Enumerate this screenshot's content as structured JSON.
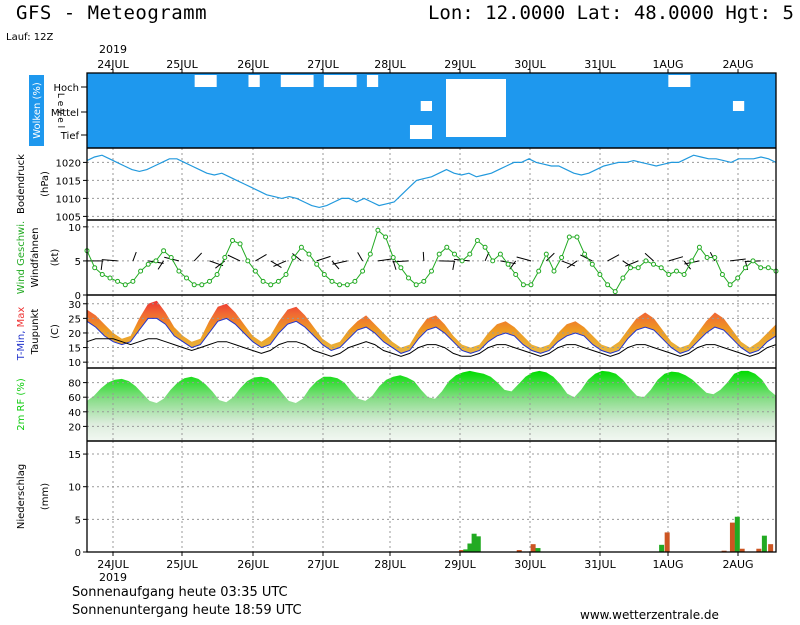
{
  "header": {
    "title": "GFS - Meteogramm",
    "location": "Lon: 12.0000 Lat: 48.0000 Hgt: 5",
    "run": "Lauf: 12Z"
  },
  "footer": {
    "sunrise": "Sonnenaufgang heute 03:35 UTC",
    "sunset": "Sonnenuntergang heute 18:59 UTC",
    "site": "www.wetterzentrale.de"
  },
  "colors": {
    "cloud_blue": "#1e98ee",
    "pressure_line": "#2299dd",
    "wind_green": "#22aa22",
    "rh_green": "#11cc11",
    "temp_orange": "#ee9922",
    "temp_red": "#ee3333",
    "dewpoint_blue": "#2233cc",
    "precip_green": "#22aa22",
    "precip_brown": "#cc5522"
  },
  "chart_data": {
    "type": "meteogram",
    "x_labels": [
      "24JUL",
      "25JUL",
      "26JUL",
      "27JUL",
      "28JUL",
      "29JUL",
      "30JUL",
      "31JUL",
      "1AUG",
      "2AUG"
    ],
    "year_top": "2019",
    "year_bottom": "2019",
    "panels": [
      {
        "id": "clouds",
        "ylabel_parts": [
          "Wolken",
          "(%)"
        ],
        "level_label": "L e v e l",
        "levels": [
          "Hoch",
          "Mittel",
          "Tief"
        ],
        "rows": {
          "hoch": [
            1,
            1,
            1,
            1,
            1,
            1,
            1,
            1,
            1,
            1,
            0,
            0,
            1,
            1,
            1,
            0,
            1,
            1,
            0,
            0,
            0,
            1,
            0,
            0,
            0,
            1,
            0,
            1,
            1,
            1,
            1,
            1,
            1,
            1,
            1,
            1,
            1,
            1,
            1,
            1,
            1,
            1,
            1,
            1,
            1,
            1,
            1,
            1,
            1,
            1,
            1,
            1,
            1,
            1,
            0,
            0,
            1,
            1,
            1,
            1,
            1,
            1,
            1,
            1
          ],
          "mittel": [
            1,
            1,
            1,
            1,
            1,
            1,
            1,
            1,
            1,
            1,
            1,
            1,
            1,
            1,
            1,
            1,
            1,
            1,
            1,
            1,
            1,
            1,
            1,
            1,
            1,
            1,
            1,
            1,
            1,
            1,
            1,
            0,
            1,
            1,
            1,
            1,
            1,
            1,
            1,
            1,
            1,
            1,
            1,
            1,
            1,
            1,
            1,
            1,
            1,
            1,
            1,
            1,
            1,
            1,
            1,
            1,
            1,
            1,
            1,
            1,
            0,
            1,
            1,
            1
          ],
          "tief": [
            1,
            1,
            1,
            1,
            1,
            1,
            1,
            1,
            1,
            1,
            1,
            1,
            1,
            1,
            1,
            1,
            1,
            1,
            1,
            1,
            1,
            1,
            1,
            1,
            1,
            1,
            1,
            1,
            1,
            1,
            0,
            0,
            1,
            1,
            1,
            1,
            1,
            1,
            1,
            1,
            1,
            1,
            1,
            1,
            1,
            1,
            1,
            1,
            1,
            1,
            1,
            1,
            1,
            1,
            1,
            1,
            1,
            1,
            1,
            1,
            1,
            1,
            1,
            1
          ]
        }
      },
      {
        "id": "pressure",
        "ylabel_parts": [
          "Bodendruck",
          "(hPa)"
        ],
        "ylim": [
          1004,
          1024
        ],
        "yticks": [
          1005,
          1010,
          1015,
          1020
        ],
        "values": [
          1020.5,
          1021.5,
          1022,
          1021,
          1020,
          1019,
          1018,
          1017.5,
          1018,
          1019,
          1020,
          1021,
          1021,
          1020,
          1019,
          1018,
          1017,
          1016.5,
          1017,
          1016,
          1015,
          1014,
          1013,
          1012,
          1011,
          1010.5,
          1010,
          1010.5,
          1010,
          1009,
          1008,
          1007.5,
          1008,
          1009,
          1010,
          1010,
          1009,
          1010,
          1009,
          1008,
          1008.5,
          1009,
          1011,
          1013,
          1015,
          1015.5,
          1016,
          1017,
          1018,
          1017,
          1016.5,
          1017,
          1016,
          1016.5,
          1017,
          1018,
          1019,
          1020,
          1020,
          1021,
          1020,
          1019.5,
          1019,
          1019,
          1018,
          1017,
          1016.5,
          1017,
          1018,
          1019,
          1019.5,
          1020,
          1020,
          1020.5,
          1020,
          1019.5,
          1019,
          1019.5,
          1020,
          1020,
          1021,
          1022,
          1021.5,
          1021,
          1021,
          1020.5,
          1020,
          1021,
          1021,
          1021,
          1021.5,
          1021,
          1020
        ]
      },
      {
        "id": "wind",
        "ylabel_parts": [
          "Wind Geschwi.",
          "Windfahnen",
          "(kt)"
        ],
        "ylim": [
          0,
          11
        ],
        "yticks": [
          0,
          5,
          10
        ],
        "values": [
          6.5,
          4,
          3,
          2.5,
          2,
          1.5,
          2,
          3.5,
          4.5,
          5,
          6.5,
          5.5,
          3.5,
          2.5,
          1.5,
          1.5,
          2,
          3,
          5.5,
          8,
          7.5,
          5,
          3.5,
          2,
          1.5,
          2,
          3,
          5.5,
          7,
          6,
          4.5,
          3,
          2,
          1.5,
          1.5,
          2,
          3.5,
          6,
          9.5,
          8.5,
          5.5,
          4,
          2.5,
          1.5,
          2,
          3.5,
          6,
          7,
          6,
          5,
          6,
          8,
          7,
          5,
          6,
          4.5,
          3,
          1.5,
          1.5,
          3.5,
          6,
          3.5,
          5.5,
          8.5,
          8.5,
          6,
          4.5,
          3,
          1.5,
          0.5,
          2.5,
          4,
          4,
          5,
          4.5,
          4,
          3,
          3.5,
          3,
          5,
          7,
          5.5,
          5.5,
          3,
          1.5,
          2.5,
          4,
          5,
          4,
          4,
          3.5
        ]
      },
      {
        "id": "temperature",
        "ylabel_parts": [
          "T-Min,",
          "Max",
          "Taupunkt",
          "(C)"
        ],
        "ylim": [
          8,
          33
        ],
        "yticks": [
          10,
          15,
          20,
          25,
          30
        ],
        "tmax": [
          28,
          26,
          23,
          20,
          18,
          19,
          25,
          30,
          31,
          27,
          22,
          19,
          17,
          18,
          24,
          29,
          30,
          27,
          23,
          19,
          17,
          19,
          24,
          28,
          29,
          26,
          22,
          18,
          16,
          17,
          21,
          24,
          26,
          23,
          20,
          17,
          15,
          16,
          21,
          25,
          26,
          23,
          19,
          16,
          15,
          16,
          20,
          23,
          24,
          22,
          19,
          16,
          15,
          16,
          20,
          23,
          24,
          22,
          19,
          16,
          15,
          17,
          21,
          25,
          27,
          25,
          21,
          17,
          15,
          16,
          20,
          24,
          27,
          25,
          21,
          17,
          15,
          17,
          20,
          23
        ],
        "tmin": [
          24,
          22,
          19,
          17,
          16,
          17,
          21,
          25,
          25,
          23,
          19,
          17,
          15,
          16,
          20,
          24,
          25,
          23,
          20,
          17,
          15,
          16,
          20,
          23,
          24,
          22,
          19,
          16,
          14,
          15,
          18,
          21,
          22,
          20,
          17,
          15,
          13,
          14,
          18,
          21,
          22,
          20,
          17,
          14,
          13,
          14,
          17,
          19,
          20,
          19,
          16,
          14,
          13,
          14,
          17,
          19,
          20,
          19,
          16,
          14,
          13,
          14,
          18,
          21,
          22,
          21,
          18,
          15,
          13,
          14,
          17,
          20,
          22,
          21,
          18,
          15,
          13,
          14,
          17,
          19
        ],
        "dewpoint": [
          17,
          18,
          18,
          18,
          17,
          16,
          17,
          18,
          18,
          17,
          16,
          15,
          14,
          15,
          16,
          17,
          17,
          16,
          15,
          14,
          13,
          14,
          16,
          17,
          17,
          16,
          14,
          13,
          12,
          13,
          15,
          16,
          17,
          16,
          14,
          13,
          12,
          13,
          15,
          16,
          16,
          15,
          13,
          12,
          12,
          13,
          15,
          16,
          16,
          15,
          14,
          13,
          12,
          13,
          15,
          16,
          16,
          15,
          14,
          13,
          12,
          13,
          15,
          16,
          16,
          15,
          14,
          13,
          12,
          13,
          15,
          16,
          16,
          15,
          14,
          13,
          12,
          13,
          15,
          16
        ]
      },
      {
        "id": "humidity",
        "ylabel_parts": [
          "2m RF",
          "(%)"
        ],
        "ylim": [
          0,
          100
        ],
        "yticks": [
          20,
          40,
          60,
          80
        ],
        "values": [
          55,
          62,
          72,
          80,
          84,
          85,
          82,
          75,
          65,
          55,
          52,
          58,
          70,
          80,
          86,
          88,
          85,
          78,
          68,
          56,
          53,
          60,
          72,
          82,
          87,
          88,
          86,
          78,
          66,
          55,
          52,
          58,
          72,
          82,
          88,
          88,
          86,
          80,
          68,
          58,
          55,
          62,
          75,
          84,
          88,
          90,
          87,
          82,
          70,
          60,
          58,
          68,
          82,
          90,
          94,
          96,
          94,
          92,
          88,
          80,
          70,
          68,
          78,
          88,
          94,
          96,
          94,
          88,
          78,
          65,
          60,
          70,
          84,
          92,
          96,
          95,
          92,
          84,
          72,
          62,
          60,
          70,
          84,
          92,
          95,
          94,
          90,
          84,
          75,
          66,
          64,
          70,
          80,
          92,
          96,
          96,
          92,
          84,
          70,
          62
        ]
      },
      {
        "id": "precip",
        "ylabel_parts": [
          "Niederschlag",
          "(mm)"
        ],
        "ylim": [
          0,
          17
        ],
        "yticks": [
          0,
          5,
          10,
          15
        ],
        "bars": [
          {
            "day": 5.02,
            "value": 0.3,
            "kind": "conv"
          },
          {
            "day": 5.08,
            "value": 0.4,
            "kind": "total"
          },
          {
            "day": 5.14,
            "value": 1.3,
            "kind": "total"
          },
          {
            "day": 5.2,
            "value": 2.8,
            "kind": "total"
          },
          {
            "day": 5.26,
            "value": 2.4,
            "kind": "total"
          },
          {
            "day": 5.85,
            "value": 0.3,
            "kind": "conv"
          },
          {
            "day": 6.05,
            "value": 1.2,
            "kind": "conv"
          },
          {
            "day": 6.12,
            "value": 0.6,
            "kind": "total"
          },
          {
            "day": 7.9,
            "value": 1.1,
            "kind": "total"
          },
          {
            "day": 7.98,
            "value": 3.0,
            "kind": "conv"
          },
          {
            "day": 8.8,
            "value": 0.2,
            "kind": "conv"
          },
          {
            "day": 8.92,
            "value": 4.5,
            "kind": "conv"
          },
          {
            "day": 8.99,
            "value": 5.4,
            "kind": "total"
          },
          {
            "day": 9.06,
            "value": 0.5,
            "kind": "conv"
          },
          {
            "day": 9.3,
            "value": 0.5,
            "kind": "conv"
          },
          {
            "day": 9.38,
            "value": 2.5,
            "kind": "total"
          },
          {
            "day": 9.47,
            "value": 1.2,
            "kind": "conv"
          }
        ]
      }
    ]
  }
}
